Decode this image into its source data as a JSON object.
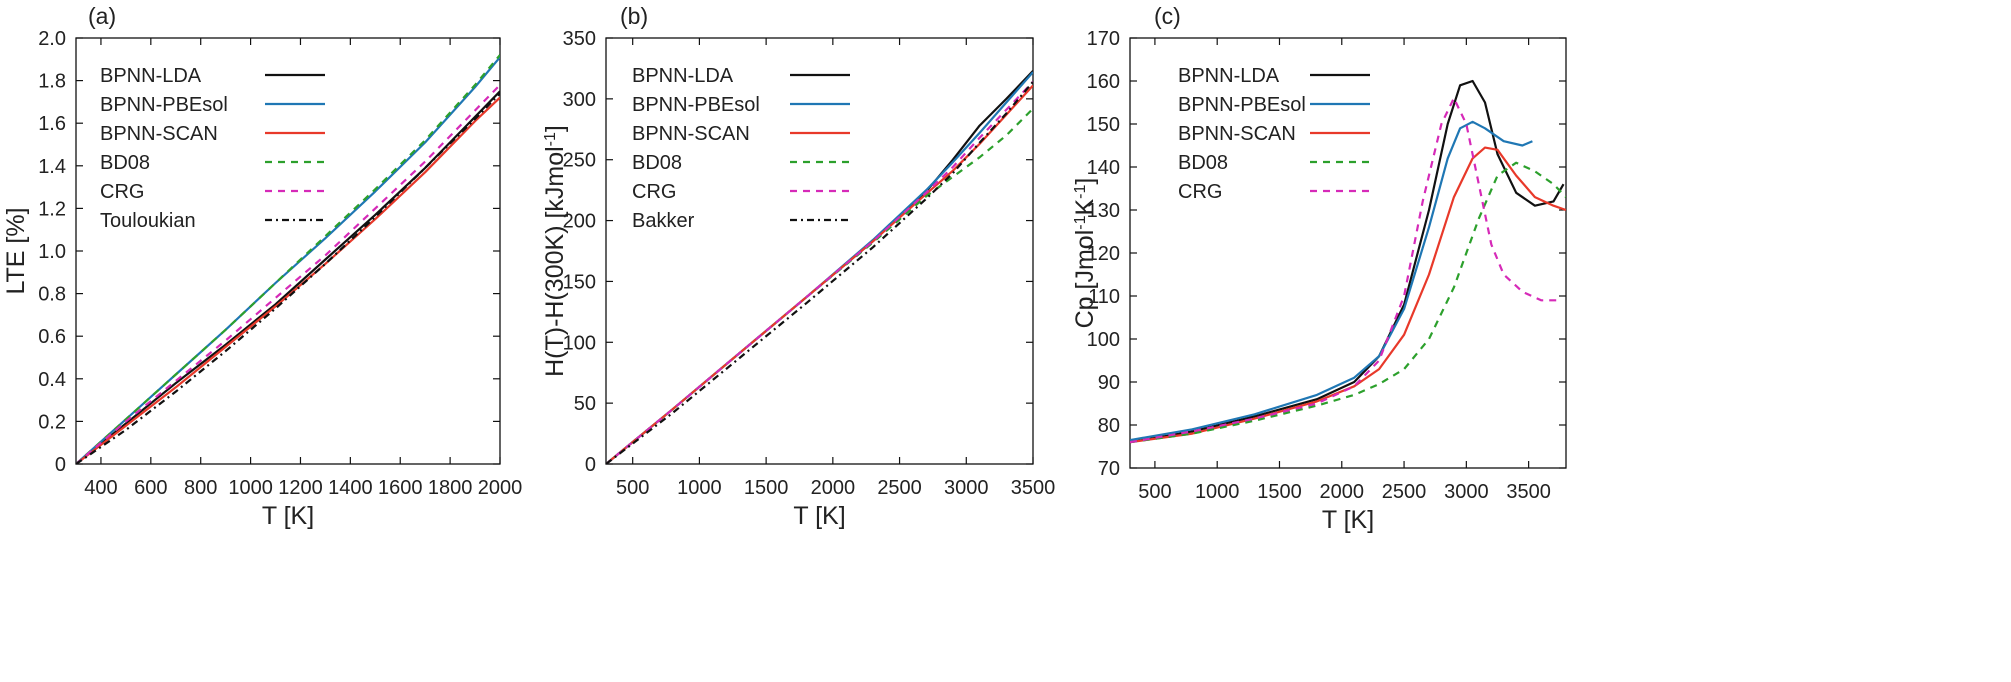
{
  "chart_data": [
    {
      "type": "line",
      "panel_label": "(a)",
      "xlabel": "T [K]",
      "ylabel": "LTE [%]",
      "xlim": [
        300,
        2000
      ],
      "ylim": [
        0,
        2.0
      ],
      "xticks": [
        400,
        600,
        800,
        1000,
        1200,
        1400,
        1600,
        1800,
        2000
      ],
      "yticks": [
        0,
        0.2,
        0.4,
        0.6,
        0.8,
        1.0,
        1.2,
        1.4,
        1.6,
        1.8,
        2.0
      ],
      "ytick_labels": [
        "0",
        "0.2",
        "0.4",
        "0.6",
        "0.8",
        "1.0",
        "1.2",
        "1.4",
        "1.6",
        "1.8",
        "2.0"
      ],
      "grid": false,
      "legend": "top-left",
      "series": [
        {
          "name": "BPNN-LDA",
          "color": "#111111",
          "dash": "solid",
          "x": [
            300,
            500,
            700,
            900,
            1100,
            1300,
            1500,
            1700,
            1900,
            2000
          ],
          "y": [
            0,
            0.19,
            0.38,
            0.56,
            0.75,
            0.96,
            1.17,
            1.39,
            1.63,
            1.75
          ]
        },
        {
          "name": "BPNN-PBEsol",
          "color": "#1f77b4",
          "dash": "solid",
          "x": [
            300,
            500,
            700,
            900,
            1100,
            1300,
            1500,
            1700,
            1900,
            2000
          ],
          "y": [
            0,
            0.21,
            0.42,
            0.63,
            0.85,
            1.06,
            1.28,
            1.51,
            1.77,
            1.91
          ]
        },
        {
          "name": "BPNN-SCAN",
          "color": "#e8392a",
          "dash": "solid",
          "x": [
            300,
            500,
            700,
            900,
            1100,
            1300,
            1500,
            1700,
            1900,
            2000
          ],
          "y": [
            0,
            0.18,
            0.36,
            0.55,
            0.74,
            0.94,
            1.15,
            1.37,
            1.61,
            1.72
          ]
        },
        {
          "name": "BD08",
          "color": "#2ca02c",
          "dash": "short",
          "x": [
            300,
            500,
            700,
            900,
            1100,
            1300,
            1500,
            1700,
            1900,
            2000
          ],
          "y": [
            0,
            0.21,
            0.42,
            0.63,
            0.85,
            1.07,
            1.29,
            1.52,
            1.78,
            1.92
          ]
        },
        {
          "name": "CRG",
          "color": "#d62ab8",
          "dash": "short",
          "x": [
            300,
            500,
            700,
            900,
            1100,
            1300,
            1500,
            1700,
            1900,
            2000
          ],
          "y": [
            0,
            0.2,
            0.39,
            0.58,
            0.78,
            0.98,
            1.2,
            1.42,
            1.66,
            1.78
          ]
        },
        {
          "name": "Touloukian",
          "color": "#111111",
          "dash": "dashdot",
          "x": [
            300,
            500,
            700,
            900,
            1100,
            1300,
            1500,
            1700,
            1900,
            2000
          ],
          "y": [
            0,
            0.16,
            0.34,
            0.53,
            0.73,
            0.94,
            1.16,
            1.39,
            1.62,
            1.74
          ]
        }
      ]
    },
    {
      "type": "line",
      "panel_label": "(b)",
      "xlabel": "T [K]",
      "ylabel": "H(T)-H(300K) [kJmol",
      "ylabel_sup": "-1",
      "ylabel_end": "]",
      "xlim": [
        300,
        3500
      ],
      "ylim": [
        0,
        350
      ],
      "xticks": [
        500,
        1000,
        1500,
        2000,
        2500,
        3000,
        3500
      ],
      "yticks": [
        0,
        50,
        100,
        150,
        200,
        250,
        300,
        350
      ],
      "ytick_labels": [
        "0",
        "50",
        "100",
        "150",
        "200",
        "250",
        "300",
        "350"
      ],
      "grid": false,
      "legend": "top-left",
      "series": [
        {
          "name": "BPNN-LDA",
          "color": "#111111",
          "dash": "solid",
          "x": [
            300,
            800,
            1300,
            1800,
            2300,
            2700,
            2900,
            3100,
            3300,
            3500
          ],
          "y": [
            0,
            45,
            91,
            137,
            183,
            224,
            250,
            278,
            300,
            323
          ]
        },
        {
          "name": "BPNN-PBEsol",
          "color": "#1f77b4",
          "dash": "solid",
          "x": [
            300,
            800,
            1300,
            1800,
            2300,
            2700,
            2900,
            3100,
            3300,
            3500
          ],
          "y": [
            0,
            45,
            91,
            137,
            184,
            225,
            248,
            272,
            297,
            322
          ]
        },
        {
          "name": "BPNN-SCAN",
          "color": "#e8392a",
          "dash": "solid",
          "x": [
            300,
            800,
            1300,
            1800,
            2300,
            2700,
            2900,
            3100,
            3300,
            3500
          ],
          "y": [
            0,
            45,
            91,
            137,
            183,
            222,
            241,
            263,
            287,
            311
          ]
        },
        {
          "name": "BD08",
          "color": "#2ca02c",
          "dash": "short",
          "x": [
            300,
            800,
            1300,
            1800,
            2300,
            2700,
            2900,
            3100,
            3300,
            3500
          ],
          "y": [
            0,
            45,
            91,
            137,
            182,
            220,
            236,
            252,
            270,
            292
          ]
        },
        {
          "name": "CRG",
          "color": "#d62ab8",
          "dash": "short",
          "x": [
            300,
            800,
            1300,
            1800,
            2300,
            2700,
            2900,
            3100,
            3300,
            3500
          ],
          "y": [
            0,
            45,
            91,
            137,
            183,
            223,
            244,
            268,
            291,
            314
          ]
        },
        {
          "name": "Bakker",
          "color": "#111111",
          "dash": "dashdot",
          "x": [
            300,
            800,
            1300,
            1800,
            2300,
            2700,
            2900,
            3100,
            3300,
            3500
          ],
          "y": [
            0,
            42,
            87,
            132,
            178,
            218,
            239,
            264,
            288,
            314
          ]
        }
      ]
    },
    {
      "type": "line",
      "panel_label": "(c)",
      "xlabel": "T [K]",
      "ylabel": "Cp [Jmol",
      "ylabel_sup1": "-1",
      "ylabel_mid": "K",
      "ylabel_sup2": "-1",
      "ylabel_end": "]",
      "xlim": [
        300,
        3800
      ],
      "ylim": [
        70,
        170
      ],
      "xticks": [
        500,
        1000,
        1500,
        2000,
        2500,
        3000,
        3500
      ],
      "yticks": [
        70,
        80,
        90,
        100,
        110,
        120,
        130,
        140,
        150,
        160,
        170
      ],
      "ytick_labels": [
        "70",
        "80",
        "90",
        "100",
        "110",
        "120",
        "130",
        "140",
        "150",
        "160",
        "170"
      ],
      "grid": false,
      "legend": "top-left",
      "series": [
        {
          "name": "BPNN-LDA",
          "color": "#111111",
          "dash": "solid",
          "x": [
            300,
            800,
            1300,
            1800,
            2100,
            2300,
            2500,
            2700,
            2850,
            2950,
            3050,
            3150,
            3250,
            3400,
            3550,
            3700,
            3780
          ],
          "y": [
            76,
            78.5,
            82,
            86,
            90,
            96,
            108,
            130,
            150,
            159,
            160,
            155,
            143,
            134,
            131,
            132,
            136
          ]
        },
        {
          "name": "BPNN-PBEsol",
          "color": "#1f77b4",
          "dash": "solid",
          "x": [
            300,
            800,
            1300,
            1800,
            2100,
            2300,
            2500,
            2700,
            2850,
            2950,
            3050,
            3150,
            3300,
            3450,
            3530
          ],
          "y": [
            76.5,
            79,
            82.5,
            87,
            91,
            96,
            107,
            126,
            142,
            149,
            150.5,
            149,
            146,
            145,
            146
          ]
        },
        {
          "name": "BPNN-SCAN",
          "color": "#e8392a",
          "dash": "solid",
          "x": [
            300,
            800,
            1300,
            1800,
            2100,
            2300,
            2500,
            2700,
            2900,
            3050,
            3150,
            3250,
            3400,
            3550,
            3700,
            3800
          ],
          "y": [
            76,
            78,
            81.5,
            85.5,
            89,
            93,
            101,
            115,
            133,
            142,
            144.5,
            144,
            138,
            133,
            131,
            130
          ]
        },
        {
          "name": "BD08",
          "color": "#2ca02c",
          "dash": "short",
          "x": [
            300,
            800,
            1300,
            1800,
            2100,
            2300,
            2500,
            2700,
            2900,
            3100,
            3250,
            3400,
            3550,
            3700,
            3800
          ],
          "y": [
            76,
            78,
            81,
            84.5,
            87,
            89.5,
            93,
            100,
            112,
            128,
            138,
            141,
            139,
            136,
            133
          ]
        },
        {
          "name": "CRG",
          "color": "#d62ab8",
          "dash": "short",
          "x": [
            300,
            800,
            1300,
            1800,
            2100,
            2300,
            2500,
            2650,
            2800,
            2900,
            3000,
            3100,
            3200,
            3300,
            3450,
            3600,
            3750
          ],
          "y": [
            76,
            78.5,
            81.5,
            85,
            89,
            95,
            110,
            132,
            150,
            156,
            150,
            136,
            122,
            115,
            111,
            109,
            109
          ]
        }
      ]
    }
  ]
}
